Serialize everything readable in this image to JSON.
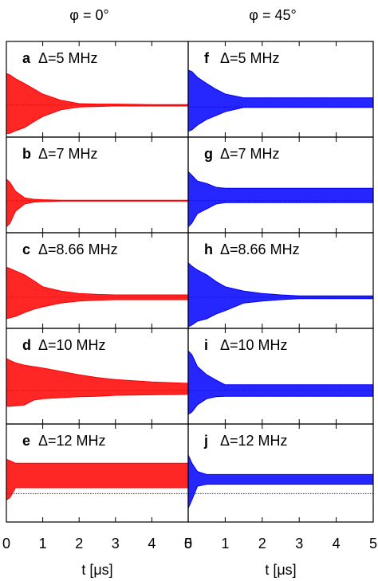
{
  "chart_data": [
    {
      "type": "area",
      "title": "φ = 0°",
      "panel": "a",
      "annotation": "Δ=5 MHz",
      "color": "#ff0000",
      "x": [
        0,
        0.1,
        0.25,
        0.5,
        0.75,
        1,
        1.5,
        2,
        2.5,
        3,
        4,
        5
      ],
      "upper": [
        0.33,
        0.3,
        0.22,
        0.12,
        0.01,
        -0.1,
        -0.23,
        -0.3,
        -0.31,
        -0.31,
        -0.32,
        -0.32
      ],
      "lower": [
        -0.93,
        -0.92,
        -0.87,
        -0.8,
        -0.68,
        -0.57,
        -0.43,
        -0.37,
        -0.36,
        -0.35,
        -0.35,
        -0.35
      ],
      "baseline": -0.33,
      "xlim": [
        0,
        5
      ],
      "ylim": [
        -1,
        1
      ],
      "xticks": [
        0,
        1,
        2,
        3,
        4,
        5
      ]
    },
    {
      "type": "area",
      "panel": "b",
      "annotation": "Δ=7 MHz",
      "color": "#ff0000",
      "x": [
        0,
        0.1,
        0.25,
        0.5,
        0.75,
        1,
        1.5,
        2,
        2.5,
        3,
        4,
        5
      ],
      "upper": [
        0.12,
        0.05,
        -0.13,
        -0.27,
        -0.3,
        -0.31,
        -0.32,
        -0.32,
        -0.32,
        -0.32,
        -0.32,
        -0.32
      ],
      "lower": [
        -0.88,
        -0.8,
        -0.55,
        -0.4,
        -0.36,
        -0.35,
        -0.34,
        -0.34,
        -0.34,
        -0.34,
        -0.34,
        -0.34
      ],
      "baseline": -0.33,
      "xlim": [
        0,
        5
      ],
      "ylim": [
        -1,
        1
      ],
      "xticks": [
        0,
        1,
        2,
        3,
        4,
        5
      ]
    },
    {
      "type": "area",
      "panel": "c",
      "annotation": "Δ=8.66 MHz",
      "color": "#ff0000",
      "x": [
        0,
        0.1,
        0.25,
        0.5,
        0.75,
        1,
        1.5,
        2,
        2.5,
        3,
        4,
        5
      ],
      "upper": [
        0.28,
        0.25,
        0.2,
        0.12,
        0.0,
        -0.13,
        -0.22,
        -0.27,
        -0.29,
        -0.3,
        -0.3,
        -0.3
      ],
      "lower": [
        -0.8,
        -0.78,
        -0.75,
        -0.67,
        -0.6,
        -0.55,
        -0.47,
        -0.43,
        -0.41,
        -0.4,
        -0.4,
        -0.4
      ],
      "baseline": -0.35,
      "xlim": [
        0,
        5
      ],
      "ylim": [
        -1,
        1
      ],
      "xticks": [
        0,
        1,
        2,
        3,
        4,
        5
      ]
    },
    {
      "type": "area",
      "panel": "d",
      "annotation": "Δ=10 MHz",
      "color": "#ff0000",
      "x": [
        0,
        0.1,
        0.25,
        0.5,
        0.75,
        1,
        1.5,
        2,
        2.5,
        3,
        4,
        5
      ],
      "upper": [
        0.37,
        0.33,
        0.28,
        0.23,
        0.2,
        0.17,
        0.1,
        0.03,
        -0.03,
        -0.07,
        -0.12,
        -0.15
      ],
      "lower": [
        -0.63,
        -0.63,
        -0.62,
        -0.6,
        -0.5,
        -0.47,
        -0.45,
        -0.43,
        -0.42,
        -0.4,
        -0.39,
        -0.38
      ],
      "baseline": -0.3,
      "xlim": [
        0,
        5
      ],
      "ylim": [
        -1,
        1
      ],
      "xticks": [
        0,
        1,
        2,
        3,
        4,
        5
      ]
    },
    {
      "type": "area",
      "panel": "e",
      "annotation": "Δ=12 MHz",
      "color": "#ff0000",
      "x": [
        0,
        0.1,
        0.25,
        0.5,
        0.75,
        1,
        1.5,
        2,
        2.5,
        3,
        4,
        5
      ],
      "upper": [
        0.28,
        0.25,
        0.2,
        0.2,
        0.2,
        0.2,
        0.2,
        0.2,
        0.2,
        0.2,
        0.2,
        0.2
      ],
      "lower": [
        -0.55,
        -0.5,
        -0.3,
        -0.3,
        -0.3,
        -0.3,
        -0.3,
        -0.3,
        -0.3,
        -0.3,
        -0.3,
        -0.3
      ],
      "baseline": -0.42,
      "xlim": [
        0,
        5
      ],
      "ylim": [
        -1,
        1
      ],
      "xticks": [
        0,
        1,
        2,
        3,
        4,
        5
      ],
      "xlabel": "t [μs]"
    },
    {
      "type": "area",
      "title": "φ = 45°",
      "panel": "f",
      "annotation": "Δ=5 MHz",
      "color": "#0000ff",
      "x": [
        0,
        0.1,
        0.25,
        0.5,
        0.75,
        1,
        1.5,
        2,
        2.5,
        3,
        4,
        5
      ],
      "upper": [
        0.4,
        0.37,
        0.25,
        0.12,
        0.0,
        -0.1,
        -0.18,
        -0.18,
        -0.18,
        -0.18,
        -0.18,
        -0.18
      ],
      "lower": [
        -0.88,
        -0.85,
        -0.75,
        -0.63,
        -0.55,
        -0.47,
        -0.38,
        -0.38,
        -0.38,
        -0.38,
        -0.38,
        -0.38
      ],
      "baseline": -0.37,
      "xlim": [
        0,
        5
      ],
      "ylim": [
        -1,
        1
      ],
      "xticks": [
        0,
        1,
        2,
        3,
        4,
        5
      ]
    },
    {
      "type": "area",
      "panel": "g",
      "annotation": "Δ=7 MHz",
      "color": "#0000ff",
      "x": [
        0,
        0.1,
        0.25,
        0.5,
        0.75,
        1,
        1.5,
        2,
        2.5,
        3,
        4,
        5
      ],
      "upper": [
        0.28,
        0.2,
        0.08,
        0.03,
        -0.05,
        -0.07,
        -0.07,
        -0.07,
        -0.07,
        -0.07,
        -0.07,
        -0.07
      ],
      "lower": [
        -0.88,
        -0.8,
        -0.6,
        -0.5,
        -0.4,
        -0.37,
        -0.37,
        -0.37,
        -0.37,
        -0.37,
        -0.37,
        -0.37
      ],
      "baseline": -0.33,
      "xlim": [
        0,
        5
      ],
      "ylim": [
        -1,
        1
      ],
      "xticks": [
        0,
        1,
        2,
        3,
        4,
        5
      ]
    },
    {
      "type": "area",
      "panel": "h",
      "annotation": "Δ=8.66 MHz",
      "color": "#0000ff",
      "x": [
        0,
        0.1,
        0.25,
        0.5,
        0.75,
        1,
        1.5,
        2,
        2.5,
        3,
        4,
        5
      ],
      "upper": [
        0.37,
        0.3,
        0.22,
        0.12,
        -0.02,
        -0.13,
        -0.22,
        -0.27,
        -0.3,
        -0.32,
        -0.32,
        -0.32
      ],
      "lower": [
        -0.97,
        -0.93,
        -0.85,
        -0.8,
        -0.7,
        -0.63,
        -0.47,
        -0.43,
        -0.4,
        -0.38,
        -0.38,
        -0.38
      ],
      "baseline": -0.35,
      "xlim": [
        0,
        5
      ],
      "ylim": [
        -1,
        1
      ],
      "xticks": [
        0,
        1,
        2,
        3,
        4,
        5
      ]
    },
    {
      "type": "area",
      "panel": "i",
      "annotation": "Δ=10 MHz",
      "color": "#0000ff",
      "x": [
        0,
        0.1,
        0.25,
        0.5,
        0.75,
        1,
        1.5,
        2,
        2.5,
        3,
        4,
        5
      ],
      "upper": [
        0.53,
        0.45,
        0.2,
        0.03,
        -0.08,
        -0.18,
        -0.18,
        -0.18,
        -0.18,
        -0.18,
        -0.18,
        -0.18
      ],
      "lower": [
        -0.8,
        -0.75,
        -0.6,
        -0.47,
        -0.43,
        -0.42,
        -0.42,
        -0.42,
        -0.42,
        -0.42,
        -0.42,
        -0.42
      ],
      "baseline": -0.3,
      "xlim": [
        0,
        5
      ],
      "ylim": [
        -1,
        1
      ],
      "xticks": [
        0,
        1,
        2,
        3,
        4,
        5
      ]
    },
    {
      "type": "area",
      "panel": "j",
      "annotation": "Δ=12 MHz",
      "color": "#0000ff",
      "x": [
        0,
        0.1,
        0.25,
        0.5,
        0.75,
        1,
        1.5,
        2,
        2.5,
        3,
        4,
        5
      ],
      "upper": [
        0.37,
        0.2,
        0.03,
        -0.03,
        -0.03,
        -0.03,
        -0.03,
        -0.03,
        -0.03,
        -0.03,
        -0.03,
        -0.03
      ],
      "lower": [
        -0.72,
        -0.55,
        -0.27,
        -0.23,
        -0.23,
        -0.23,
        -0.23,
        -0.23,
        -0.23,
        -0.23,
        -0.23,
        -0.23
      ],
      "baseline": -0.42,
      "xlim": [
        0,
        5
      ],
      "ylim": [
        -1,
        1
      ],
      "xticks": [
        0,
        1,
        2,
        3,
        4,
        5
      ],
      "xlabel": "t [μs]"
    }
  ]
}
